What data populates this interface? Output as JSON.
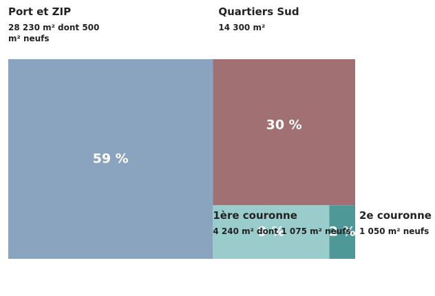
{
  "chart_data": {
    "type": "treemap",
    "series": [
      {
        "name": "Port et ZIP",
        "description": "28 230 m² dont 500 m² neufs",
        "values": [
          59
        ],
        "value_labels": [
          "59 %"
        ],
        "color": "#8aa3bf"
      },
      {
        "name": "Quartiers Sud",
        "description": "14 300 m²",
        "values": [
          30
        ],
        "value_labels": [
          "30 %"
        ],
        "color": "#a07073"
      },
      {
        "name": "1ère couronne",
        "description": "4 240 m² dont 1 075 m² neufs",
        "values": [
          9
        ],
        "value_labels": [
          "9 %"
        ],
        "color": "#9bcccc"
      },
      {
        "name": "2e couronne",
        "description": "1 050 m² neufs",
        "values": [
          2
        ],
        "value_labels": [
          "2 %"
        ],
        "color": "#4f9898"
      }
    ]
  }
}
